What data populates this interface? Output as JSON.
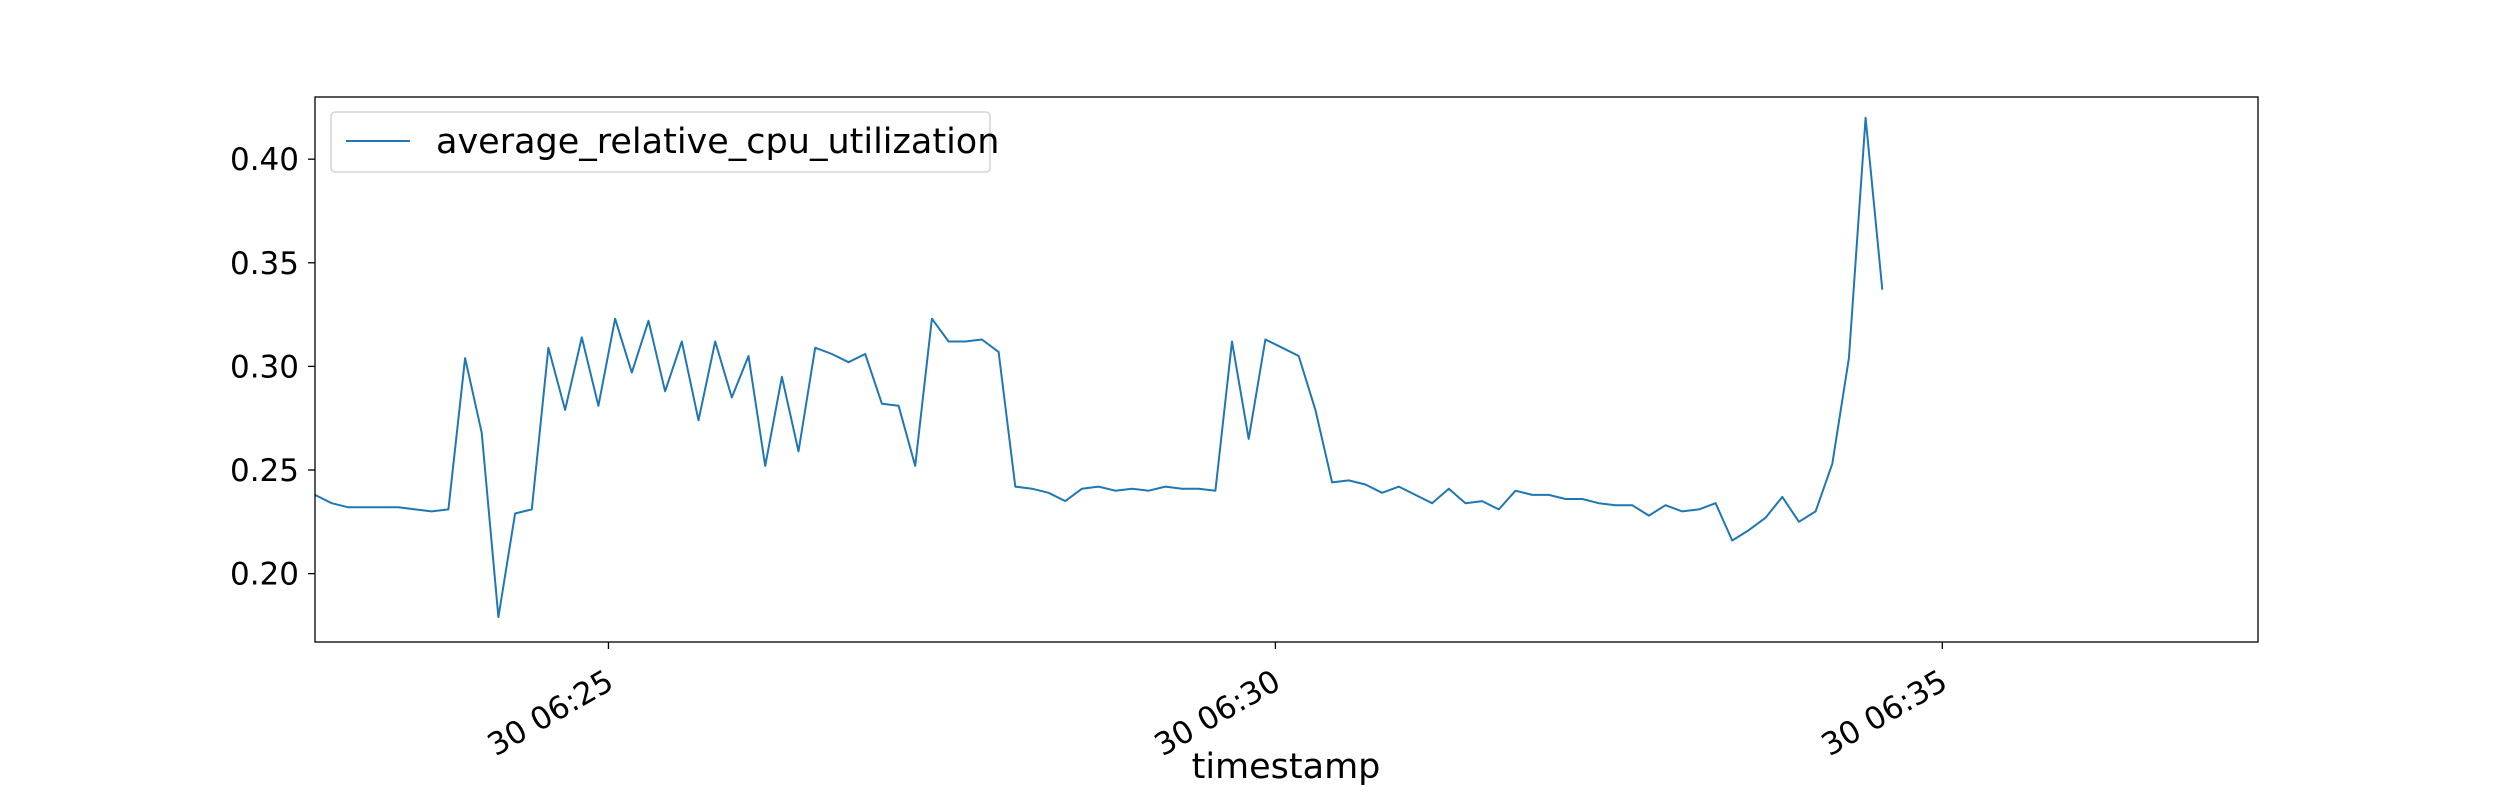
{
  "chart_data": {
    "type": "line",
    "xlabel": "timestamp",
    "ylabel": "",
    "title": "",
    "x_start": "30 06:22:48",
    "x_step_seconds": 7.5,
    "xlim": [
      "30 06:22:48",
      "30 06:37:22"
    ],
    "ylim": [
      0.167,
      0.43
    ],
    "x_ticks": [
      "30 06:25",
      "30 06:30",
      "30 06:35"
    ],
    "y_ticks": [
      "0.20",
      "0.25",
      "0.30",
      "0.35",
      "0.40"
    ],
    "legend": {
      "position": "top-left",
      "entries": [
        "average_relative_cpu_utilization"
      ]
    },
    "grid": false,
    "series": [
      {
        "name": "average_relative_cpu_utilization",
        "color": "#1f77b4",
        "values": [
          0.238,
          0.234,
          0.232,
          0.232,
          0.232,
          0.232,
          0.231,
          0.23,
          0.231,
          0.304,
          0.268,
          0.179,
          0.229,
          0.231,
          0.309,
          0.279,
          0.314,
          0.281,
          0.323,
          0.297,
          0.322,
          0.288,
          0.312,
          0.274,
          0.312,
          0.285,
          0.305,
          0.252,
          0.295,
          0.259,
          0.309,
          0.306,
          0.302,
          0.306,
          0.282,
          0.281,
          0.252,
          0.323,
          0.312,
          0.312,
          0.313,
          0.307,
          0.242,
          0.241,
          0.239,
          0.235,
          0.241,
          0.242,
          0.24,
          0.241,
          0.24,
          0.242,
          0.241,
          0.241,
          0.24,
          0.312,
          0.265,
          0.313,
          0.309,
          0.305,
          0.279,
          0.244,
          0.245,
          0.243,
          0.239,
          0.242,
          0.238,
          0.234,
          0.241,
          0.234,
          0.235,
          0.231,
          0.24,
          0.238,
          0.238,
          0.236,
          0.236,
          0.234,
          0.233,
          0.233,
          0.228,
          0.233,
          0.23,
          0.231,
          0.234,
          0.216,
          0.221,
          0.227,
          0.237,
          0.225,
          0.23,
          0.253,
          0.304,
          0.42,
          0.337
        ]
      }
    ]
  }
}
